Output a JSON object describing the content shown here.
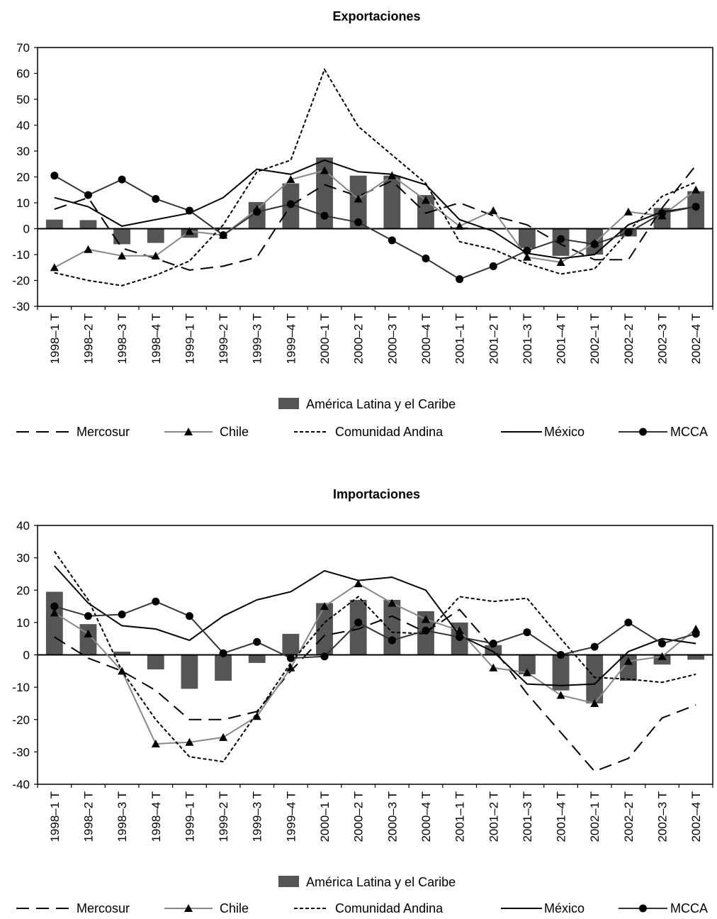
{
  "chart_data": [
    {
      "type": "bar",
      "title": "Exportaciones",
      "ylim": [
        -30,
        70
      ],
      "yticks": [
        -30,
        -20,
        -10,
        0,
        10,
        20,
        30,
        40,
        50,
        60,
        70
      ],
      "categories": [
        "1998–1 T",
        "1998–2 T",
        "1998–3 T",
        "1998–4 T",
        "1999–1 T",
        "1999–2 T",
        "1999–3 T",
        "1999–4 T",
        "2000–1 T",
        "2000–2 T",
        "2000–3 T",
        "2000–4 T",
        "2001–1 T",
        "2001–2 T",
        "2001–3 T",
        "2001–4 T",
        "2002–1 T",
        "2002–2 T",
        "2002–3 T",
        "2002–4 T"
      ],
      "bars": {
        "name": "América Latina y el Caribe",
        "color": "#555555",
        "values": [
          3.5,
          3.3,
          -6,
          -5.5,
          -3.5,
          0.5,
          10.3,
          17.5,
          27.5,
          20.5,
          20.5,
          13,
          0.5,
          0,
          -7.5,
          -10.5,
          -10,
          -3,
          8,
          14.5
        ]
      },
      "series": [
        {
          "name": "Mercosur",
          "style": "longdash",
          "marker": "none",
          "color": "#000000",
          "values": [
            7.5,
            12,
            -7.5,
            -11.5,
            -16,
            -14.5,
            -11,
            9,
            17,
            12.5,
            18.5,
            6,
            10,
            5,
            1.5,
            -6,
            -12,
            -12,
            8,
            24.5
          ]
        },
        {
          "name": "Chile",
          "style": "solid",
          "marker": "triangle",
          "color": "#888888",
          "values": [
            -15,
            -8,
            -10.5,
            -10.5,
            -1,
            -2.5,
            7.5,
            19,
            22.5,
            11.5,
            20.5,
            11,
            1,
            7,
            -11,
            -13,
            -5.5,
            6.5,
            5,
            15
          ]
        },
        {
          "name": "Comunidad Andina",
          "style": "shortdash",
          "marker": "none",
          "color": "#000000",
          "values": [
            -17,
            -20,
            -22,
            -18,
            -12.5,
            1.5,
            22,
            26.5,
            61.5,
            39.5,
            28.5,
            17.5,
            -5,
            -8,
            -13.5,
            -17.5,
            -15.5,
            -1,
            12.5,
            18
          ]
        },
        {
          "name": "México",
          "style": "solid",
          "marker": "none",
          "color": "#000000",
          "values": [
            12,
            8.5,
            1,
            3.5,
            6,
            12,
            23,
            21,
            26.5,
            22,
            21,
            17,
            3.5,
            -1,
            -9.5,
            -11.5,
            -10,
            1.5,
            6.5,
            8.5
          ]
        },
        {
          "name": "MCCA",
          "style": "solid",
          "marker": "circle",
          "color": "#333333",
          "values": [
            20.5,
            13,
            19,
            11.5,
            7,
            -2.5,
            6.5,
            9.5,
            5,
            2.5,
            -4.5,
            -11.5,
            -19.5,
            -14.5,
            -8.5,
            -4,
            -6,
            -1.5,
            6,
            8.5
          ]
        }
      ]
    },
    {
      "type": "bar",
      "title": "Importaciones",
      "ylim": [
        -40,
        40
      ],
      "yticks": [
        -40,
        -30,
        -20,
        -10,
        0,
        10,
        20,
        30,
        40
      ],
      "categories": [
        "1998–1 T",
        "1998–2 T",
        "1998–3 T",
        "1998–4 T",
        "1999–1 T",
        "1999–2 T",
        "1999–3 T",
        "1999–4 T",
        "2000–1 T",
        "2000–2 T",
        "2000–3 T",
        "2000–4 T",
        "2001–1 T",
        "2001–2 T",
        "2001–3 T",
        "2001–4 T",
        "2002–1 T",
        "2002–2 T",
        "2002–3 T",
        "2002–4 T"
      ],
      "bars": {
        "name": "América Latina y el Caribe",
        "color": "#555555",
        "values": [
          19.5,
          9.5,
          1,
          -4.5,
          -10.5,
          -8,
          -2.5,
          6.5,
          16,
          17,
          17,
          13.5,
          10,
          3,
          -6,
          -11,
          -15,
          -8,
          -3,
          -1.5
        ]
      },
      "series": [
        {
          "name": "Mercosur",
          "style": "longdash",
          "marker": "none",
          "color": "#000000",
          "values": [
            5.5,
            -1,
            -5,
            -11,
            -20,
            -20,
            -17.5,
            -5,
            6,
            8,
            12,
            7,
            14,
            2,
            -12,
            -24,
            -36,
            -32,
            -19.5,
            -15.5
          ]
        },
        {
          "name": "Chile",
          "style": "solid",
          "marker": "triangle",
          "color": "#888888",
          "values": [
            13,
            6.5,
            -5,
            -27.5,
            -27,
            -25.5,
            -19,
            -4,
            15,
            22,
            16,
            11,
            7.5,
            -4,
            -5.5,
            -12.5,
            -15,
            -2,
            -0.5,
            8
          ]
        },
        {
          "name": "Comunidad Andina",
          "style": "shortdash",
          "marker": "none",
          "color": "#000000",
          "values": [
            32,
            17,
            -5,
            -20,
            -31.5,
            -33,
            -18,
            -2.5,
            10,
            18,
            7,
            6.5,
            18,
            16.5,
            17.5,
            5,
            -7,
            -7.5,
            -8.5,
            -6
          ]
        },
        {
          "name": "México",
          "style": "solid",
          "marker": "none",
          "color": "#000000",
          "values": [
            27.5,
            16,
            9,
            8,
            4.5,
            12,
            17,
            19.5,
            26,
            23,
            24,
            20,
            6,
            1,
            -9,
            -9.5,
            -9,
            1,
            5,
            3.5
          ]
        },
        {
          "name": "MCCA",
          "style": "solid",
          "marker": "circle",
          "color": "#333333",
          "values": [
            15,
            12,
            12.5,
            16.5,
            12,
            0.5,
            4,
            -1,
            -0.5,
            10,
            4.5,
            7.5,
            5.5,
            3.5,
            7,
            0,
            2.5,
            10,
            3.5,
            6.5
          ]
        }
      ]
    }
  ]
}
